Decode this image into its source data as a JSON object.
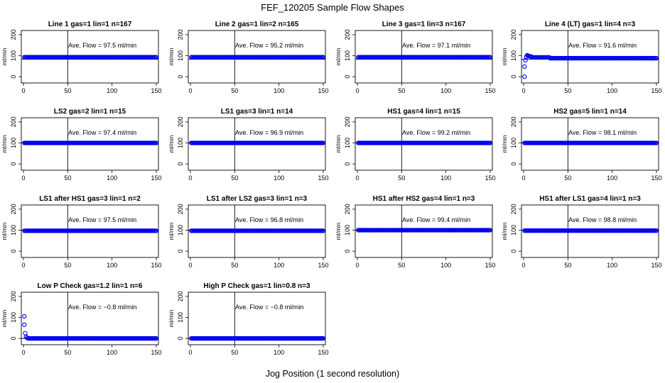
{
  "figure": {
    "title": "FEF_120205  Sample Flow Shapes",
    "xlabel": "Jog Position (1 second resolution)"
  },
  "chart_data": [
    {
      "type": "scatter",
      "title": "Line 1 gas=1 lin=1 n=167",
      "ylabel": "ml/min",
      "xlim": [
        0,
        150
      ],
      "ylim": [
        -30,
        220
      ],
      "xticks": [
        0,
        50,
        100,
        150
      ],
      "yticks": [
        0,
        100,
        200
      ],
      "hline": 83,
      "vline": 50,
      "annotation": "Ave. Flow = 97.5  ml/min",
      "shape": "flat",
      "level": 93
    },
    {
      "type": "scatter",
      "title": "Line 2 gas=1 lin=2 n=165",
      "ylabel": "ml/min",
      "xlim": [
        0,
        150
      ],
      "ylim": [
        -30,
        220
      ],
      "xticks": [
        0,
        50,
        100,
        150
      ],
      "yticks": [
        0,
        100,
        200
      ],
      "hline": 83,
      "vline": 50,
      "annotation": "Ave. Flow = 95.2  ml/min",
      "shape": "flat",
      "level": 93
    },
    {
      "type": "scatter",
      "title": "Line 3 gas=1 lin=3 n=167",
      "ylabel": "ml/min",
      "xlim": [
        0,
        150
      ],
      "ylim": [
        -30,
        220
      ],
      "xticks": [
        0,
        50,
        100,
        150
      ],
      "yticks": [
        0,
        100,
        200
      ],
      "hline": 83,
      "vline": 50,
      "annotation": "Ave. Flow = 97.1  ml/min",
      "shape": "flat",
      "level": 93
    },
    {
      "type": "scatter",
      "title": "Line 4 (LT) gas=1 lin=4 n=3",
      "ylabel": "ml/min",
      "xlim": [
        0,
        150
      ],
      "ylim": [
        -30,
        220
      ],
      "xticks": [
        0,
        50,
        100,
        150
      ],
      "yticks": [
        0,
        100,
        200
      ],
      "hline": 83,
      "vline": 50,
      "annotation": "Ave. Flow = 91.6  ml/min",
      "shape": "ramp",
      "level": 88
    },
    {
      "type": "scatter",
      "title": "LS2 gas=2 lin=1 n=15",
      "ylabel": "ml/min",
      "xlim": [
        0,
        150
      ],
      "ylim": [
        -30,
        220
      ],
      "xticks": [
        0,
        50,
        100,
        150
      ],
      "yticks": [
        0,
        100,
        200
      ],
      "hline": 100,
      "vline": 50,
      "annotation": "Ave. Flow = 97.4  ml/min",
      "shape": "flat",
      "level": 100
    },
    {
      "type": "scatter",
      "title": "LS1 gas=3 lin=1 n=14",
      "ylabel": "ml/min",
      "xlim": [
        0,
        150
      ],
      "ylim": [
        -30,
        220
      ],
      "xticks": [
        0,
        50,
        100,
        150
      ],
      "yticks": [
        0,
        100,
        200
      ],
      "hline": 100,
      "vline": 50,
      "annotation": "Ave. Flow = 96.9  ml/min",
      "shape": "flat",
      "level": 100
    },
    {
      "type": "scatter",
      "title": "HS1 gas=4 lin=1 n=15",
      "ylabel": "ml/min",
      "xlim": [
        0,
        150
      ],
      "ylim": [
        -30,
        220
      ],
      "xticks": [
        0,
        50,
        100,
        150
      ],
      "yticks": [
        0,
        100,
        200
      ],
      "hline": 100,
      "vline": 50,
      "annotation": "Ave. Flow = 99.2  ml/min",
      "shape": "flat",
      "level": 100
    },
    {
      "type": "scatter",
      "title": "HS2 gas=5 lin=1 n=14",
      "ylabel": "ml/min",
      "xlim": [
        0,
        150
      ],
      "ylim": [
        -30,
        220
      ],
      "xticks": [
        0,
        50,
        100,
        150
      ],
      "yticks": [
        0,
        100,
        200
      ],
      "hline": 100,
      "vline": 50,
      "annotation": "Ave. Flow = 98.1  ml/min",
      "shape": "flat",
      "level": 100
    },
    {
      "type": "scatter",
      "title": "LS1 after HS1 gas=3 lin=1 n=2",
      "ylabel": "ml/min",
      "xlim": [
        0,
        150
      ],
      "ylim": [
        -30,
        220
      ],
      "xticks": [
        0,
        50,
        100,
        150
      ],
      "yticks": [
        0,
        100,
        200
      ],
      "hline": 100,
      "vline": 50,
      "annotation": "Ave. Flow = 97.5  ml/min",
      "shape": "flat",
      "level": 97
    },
    {
      "type": "scatter",
      "title": "LS1 after LS2 gas=3 lin=1 n=3",
      "ylabel": "ml/min",
      "xlim": [
        0,
        150
      ],
      "ylim": [
        -30,
        220
      ],
      "xticks": [
        0,
        50,
        100,
        150
      ],
      "yticks": [
        0,
        100,
        200
      ],
      "hline": 100,
      "vline": 50,
      "annotation": "Ave. Flow = 96.8  ml/min",
      "shape": "flat",
      "level": 97
    },
    {
      "type": "scatter",
      "title": "HS1 after HS2 gas=4 lin=1 n=3",
      "ylabel": "ml/min",
      "xlim": [
        0,
        150
      ],
      "ylim": [
        -30,
        220
      ],
      "xticks": [
        0,
        50,
        100,
        150
      ],
      "yticks": [
        0,
        100,
        200
      ],
      "hline": 100,
      "vline": 50,
      "annotation": "Ave. Flow = 99.4  ml/min",
      "shape": "flat",
      "level": 100
    },
    {
      "type": "scatter",
      "title": "HS1 after LS1 gas=4 lin=1 n=3",
      "ylabel": "ml/min",
      "xlim": [
        0,
        150
      ],
      "ylim": [
        -30,
        220
      ],
      "xticks": [
        0,
        50,
        100,
        150
      ],
      "yticks": [
        0,
        100,
        200
      ],
      "hline": 100,
      "vline": 50,
      "annotation": "Ave. Flow = 98.8  ml/min",
      "shape": "flat",
      "level": 98
    },
    {
      "type": "scatter",
      "title": "Low P Check gas=1.2 lin=1 n=6",
      "ylabel": "ml/min",
      "xlim": [
        0,
        150
      ],
      "ylim": [
        -30,
        220
      ],
      "xticks": [
        0,
        50,
        100,
        150
      ],
      "yticks": [
        0,
        100,
        200
      ],
      "hline": 0,
      "vline": 50,
      "annotation": "Ave. Flow = −0.8  ml/min",
      "shape": "decay",
      "level": 0
    },
    {
      "type": "scatter",
      "title": "High P Check gas=1 lin=0.8 n=3",
      "ylabel": "ml/min",
      "xlim": [
        0,
        150
      ],
      "ylim": [
        -30,
        220
      ],
      "xticks": [
        0,
        50,
        100,
        150
      ],
      "yticks": [
        0,
        100,
        200
      ],
      "hline": 0,
      "vline": 50,
      "annotation": "Ave. Flow = −0.8  ml/min",
      "shape": "flat",
      "level": 0
    }
  ],
  "colors": {
    "points": "#0000ee",
    "axes": "#000000"
  }
}
